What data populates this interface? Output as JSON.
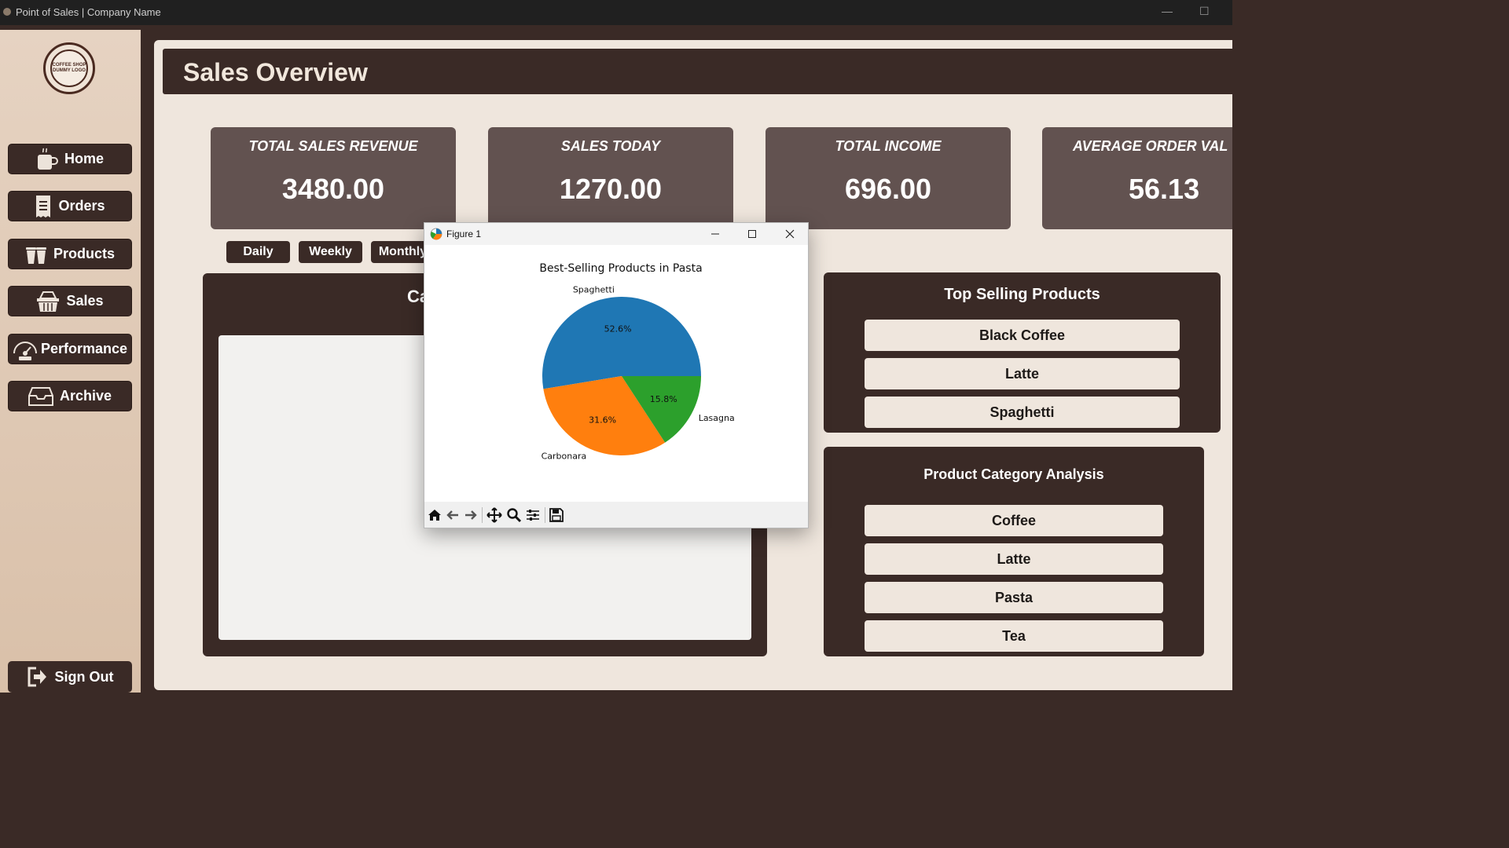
{
  "window": {
    "title": "Point of Sales | Company Name",
    "minimize": "—",
    "maximize": "☐"
  },
  "logo": {
    "text": "COFFEE SHOP DUMMY LOGO"
  },
  "nav": {
    "home": "Home",
    "orders": "Orders",
    "products": "Products",
    "sales": "Sales",
    "performance": "Performance",
    "archive": "Archive",
    "signout": "Sign Out"
  },
  "header": {
    "title": "Sales Overview"
  },
  "cards": [
    {
      "label": "TOTAL SALES REVENUE",
      "value": "3480.00"
    },
    {
      "label": "SALES TODAY",
      "value": "1270.00"
    },
    {
      "label": "TOTAL INCOME",
      "value": "696.00"
    },
    {
      "label": "AVERAGE ORDER VAL",
      "value": "56.13"
    }
  ],
  "period_buttons": {
    "daily": "Daily",
    "weekly": "Weekly",
    "monthly": "Monthly"
  },
  "chart_panel": {
    "title_partial": "Ca"
  },
  "top_selling": {
    "title": "Top Selling Products",
    "items": [
      "Black Coffee",
      "Latte",
      "Spaghetti"
    ]
  },
  "category_analysis": {
    "title": "Product Category Analysis",
    "items": [
      "Coffee",
      "Latte",
      "Pasta",
      "Tea"
    ]
  },
  "figure": {
    "window_title": "Figure 1"
  },
  "chart_data": {
    "type": "pie",
    "title": "Best-Selling Products in Pasta",
    "categories": [
      "Spaghetti",
      "Carbonara",
      "Lasagna"
    ],
    "values": [
      52.6,
      31.6,
      15.8
    ],
    "labels_pct": [
      "52.6%",
      "31.6%",
      "15.8%"
    ],
    "colors": [
      "#1f77b4",
      "#ff7f0e",
      "#2ca02c"
    ]
  }
}
